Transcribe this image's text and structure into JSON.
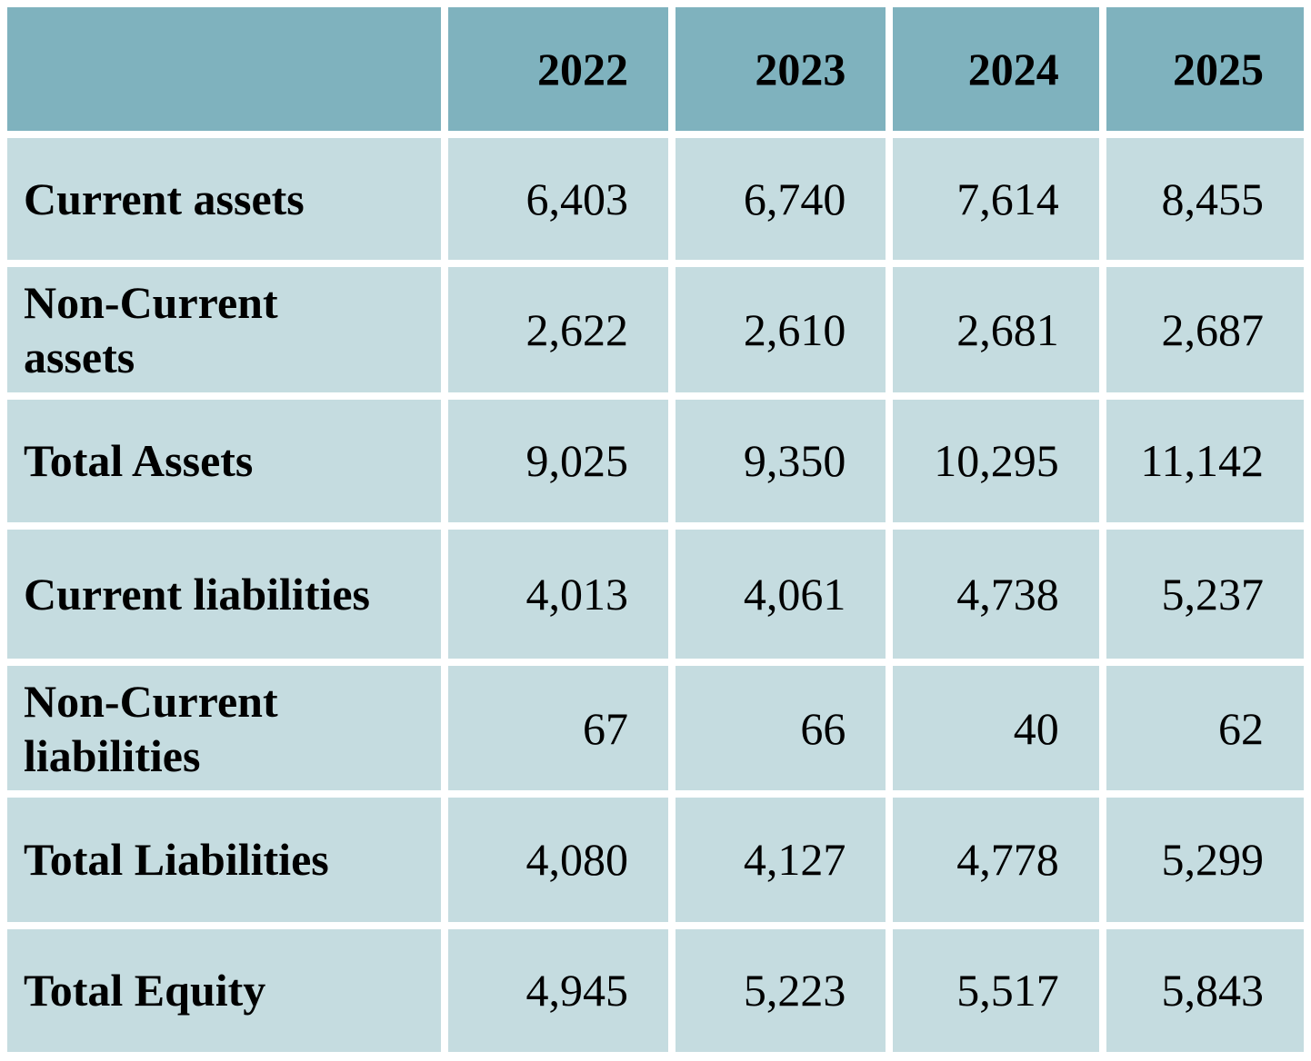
{
  "table": {
    "corner_label": "",
    "columns": [
      "2022",
      "2023",
      "2024",
      "2025"
    ],
    "rows": [
      {
        "label": "Current assets",
        "values": [
          "6,403",
          "6,740",
          "7,614",
          "8,455"
        ]
      },
      {
        "label": "Non-Current\nassets",
        "values": [
          "2,622",
          "2,610",
          "2,681",
          "2,687"
        ]
      },
      {
        "label": "Total Assets",
        "values": [
          "9,025",
          "9,350",
          "10,295",
          "11,142"
        ]
      },
      {
        "label": "Current liabilities",
        "values": [
          "4,013",
          "4,061",
          "4,738",
          "5,237"
        ]
      },
      {
        "label": "Non-Current\nliabilities",
        "values": [
          "67",
          "66",
          "40",
          "62"
        ]
      },
      {
        "label": "Total Liabilities",
        "values": [
          "4,080",
          "4,127",
          "4,778",
          "5,299"
        ]
      },
      {
        "label": "Total Equity",
        "values": [
          "4,945",
          "5,223",
          "5,517",
          "5,843"
        ]
      }
    ],
    "colors": {
      "header_bg": "#7fb2be",
      "body_bg": "#c5dce0",
      "gap_bg": "#ffffff",
      "text": "#000000"
    }
  }
}
